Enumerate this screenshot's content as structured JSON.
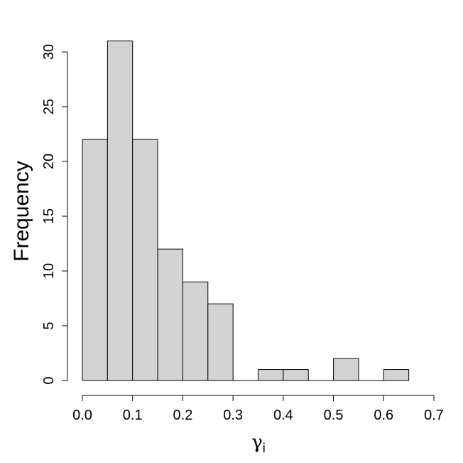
{
  "chart_data": {
    "type": "bar",
    "subtype": "histogram",
    "bins": [
      {
        "start": 0.0,
        "end": 0.05,
        "value": 22
      },
      {
        "start": 0.05,
        "end": 0.1,
        "value": 31
      },
      {
        "start": 0.1,
        "end": 0.15,
        "value": 22
      },
      {
        "start": 0.15,
        "end": 0.2,
        "value": 12
      },
      {
        "start": 0.2,
        "end": 0.25,
        "value": 9
      },
      {
        "start": 0.25,
        "end": 0.3,
        "value": 7
      },
      {
        "start": 0.3,
        "end": 0.35,
        "value": 0
      },
      {
        "start": 0.35,
        "end": 0.4,
        "value": 1
      },
      {
        "start": 0.4,
        "end": 0.45,
        "value": 1
      },
      {
        "start": 0.45,
        "end": 0.5,
        "value": 0
      },
      {
        "start": 0.5,
        "end": 0.55,
        "value": 2
      },
      {
        "start": 0.55,
        "end": 0.6,
        "value": 0
      },
      {
        "start": 0.6,
        "end": 0.65,
        "value": 1
      }
    ],
    "xlabel": {
      "symbol": "γ",
      "subscript": "i"
    },
    "ylabel": "Frequency",
    "xlim": [
      0,
      0.7
    ],
    "ylim": [
      0,
      30
    ],
    "xticks": [
      "0.0",
      "0.1",
      "0.2",
      "0.3",
      "0.4",
      "0.5",
      "0.6",
      "0.7"
    ],
    "yticks": [
      "0",
      "5",
      "10",
      "15",
      "20",
      "25",
      "30"
    ],
    "grid": false,
    "legend": "none",
    "colors": {
      "bar_fill": "#d3d3d3",
      "bar_stroke": "#000000"
    }
  }
}
